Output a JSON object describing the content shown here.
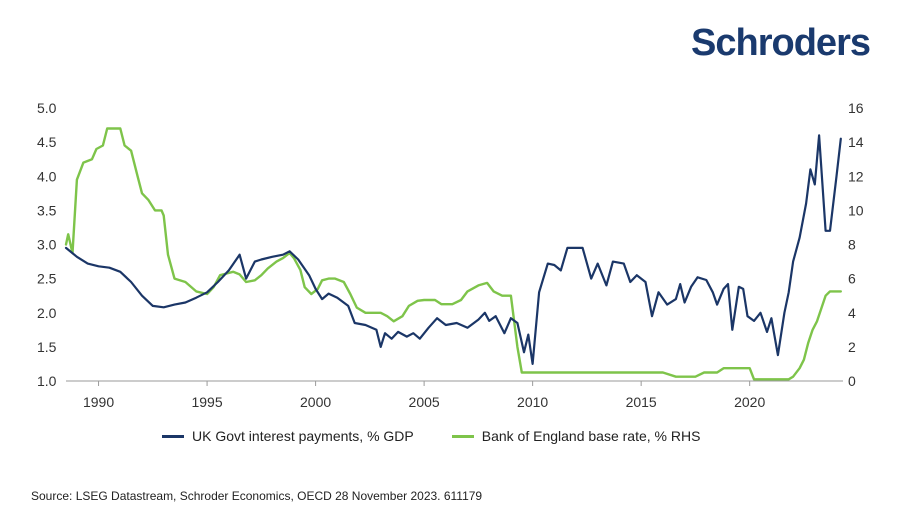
{
  "brand": "Schroders",
  "source": "Source: LSEG Datastream, Schroder Economics, OECD 28 November 2023. 611179",
  "colors": {
    "series1": "#1b3667",
    "series2": "#7ec44a",
    "brand": "#1a3a6e"
  },
  "chart_data": {
    "type": "line",
    "title": "",
    "xlabel": "",
    "ylabel_left": "",
    "ylabel_right": "",
    "xlim": [
      1988.5,
      2024.3
    ],
    "ylim_left": [
      1.0,
      5.0
    ],
    "ylim_right": [
      0,
      16
    ],
    "x_ticks": [
      "1990",
      "1995",
      "2000",
      "2005",
      "2010",
      "2015",
      "2020"
    ],
    "y_ticks_left": [
      "5.0",
      "4.5",
      "4.0",
      "3.5",
      "3.0",
      "2.5",
      "2.0",
      "1.5",
      "1.0"
    ],
    "y_ticks_right": [
      "16",
      "14",
      "12",
      "10",
      "8",
      "6",
      "4",
      "2",
      "0"
    ],
    "grid": false,
    "legend_position": "bottom",
    "series": [
      {
        "name": "UK Govt interest payments, % GDP",
        "axis": "left",
        "points": [
          [
            1988.5,
            2.95
          ],
          [
            1989.0,
            2.82
          ],
          [
            1989.5,
            2.72
          ],
          [
            1990.0,
            2.68
          ],
          [
            1990.5,
            2.66
          ],
          [
            1991.0,
            2.6
          ],
          [
            1991.5,
            2.45
          ],
          [
            1992.0,
            2.25
          ],
          [
            1992.5,
            2.1
          ],
          [
            1993.0,
            2.08
          ],
          [
            1993.5,
            2.12
          ],
          [
            1994.0,
            2.15
          ],
          [
            1994.5,
            2.22
          ],
          [
            1995.0,
            2.3
          ],
          [
            1995.5,
            2.45
          ],
          [
            1996.0,
            2.62
          ],
          [
            1996.5,
            2.85
          ],
          [
            1996.8,
            2.5
          ],
          [
            1997.2,
            2.75
          ],
          [
            1997.5,
            2.78
          ],
          [
            1998.0,
            2.82
          ],
          [
            1998.5,
            2.85
          ],
          [
            1998.8,
            2.9
          ],
          [
            1999.2,
            2.78
          ],
          [
            1999.7,
            2.55
          ],
          [
            2000.0,
            2.35
          ],
          [
            2000.3,
            2.2
          ],
          [
            2000.6,
            2.28
          ],
          [
            2001.0,
            2.22
          ],
          [
            2001.5,
            2.1
          ],
          [
            2001.8,
            1.85
          ],
          [
            2002.3,
            1.82
          ],
          [
            2002.8,
            1.75
          ],
          [
            2003.0,
            1.5
          ],
          [
            2003.2,
            1.7
          ],
          [
            2003.5,
            1.62
          ],
          [
            2003.8,
            1.72
          ],
          [
            2004.2,
            1.65
          ],
          [
            2004.5,
            1.7
          ],
          [
            2004.8,
            1.62
          ],
          [
            2005.2,
            1.78
          ],
          [
            2005.6,
            1.92
          ],
          [
            2006.0,
            1.82
          ],
          [
            2006.5,
            1.85
          ],
          [
            2007.0,
            1.78
          ],
          [
            2007.5,
            1.9
          ],
          [
            2007.8,
            2.0
          ],
          [
            2008.0,
            1.88
          ],
          [
            2008.3,
            1.95
          ],
          [
            2008.7,
            1.7
          ],
          [
            2009.0,
            1.92
          ],
          [
            2009.3,
            1.85
          ],
          [
            2009.6,
            1.42
          ],
          [
            2009.8,
            1.68
          ],
          [
            2010.0,
            1.25
          ],
          [
            2010.3,
            2.3
          ],
          [
            2010.7,
            2.72
          ],
          [
            2011.0,
            2.7
          ],
          [
            2011.3,
            2.62
          ],
          [
            2011.6,
            2.95
          ],
          [
            2012.0,
            2.95
          ],
          [
            2012.3,
            2.95
          ],
          [
            2012.7,
            2.5
          ],
          [
            2013.0,
            2.72
          ],
          [
            2013.4,
            2.4
          ],
          [
            2013.7,
            2.75
          ],
          [
            2014.2,
            2.72
          ],
          [
            2014.5,
            2.45
          ],
          [
            2014.8,
            2.55
          ],
          [
            2015.2,
            2.45
          ],
          [
            2015.5,
            1.95
          ],
          [
            2015.8,
            2.3
          ],
          [
            2016.2,
            2.12
          ],
          [
            2016.6,
            2.2
          ],
          [
            2016.8,
            2.42
          ],
          [
            2017.0,
            2.15
          ],
          [
            2017.3,
            2.38
          ],
          [
            2017.6,
            2.52
          ],
          [
            2018.0,
            2.48
          ],
          [
            2018.3,
            2.3
          ],
          [
            2018.5,
            2.12
          ],
          [
            2018.8,
            2.35
          ],
          [
            2019.0,
            2.42
          ],
          [
            2019.2,
            1.75
          ],
          [
            2019.5,
            2.38
          ],
          [
            2019.7,
            2.35
          ],
          [
            2019.9,
            1.95
          ],
          [
            2020.2,
            1.88
          ],
          [
            2020.5,
            2.0
          ],
          [
            2020.8,
            1.72
          ],
          [
            2021.0,
            1.92
          ],
          [
            2021.3,
            1.38
          ],
          [
            2021.6,
            2.0
          ],
          [
            2021.8,
            2.3
          ],
          [
            2022.0,
            2.75
          ],
          [
            2022.3,
            3.1
          ],
          [
            2022.6,
            3.6
          ],
          [
            2022.8,
            4.1
          ],
          [
            2023.0,
            3.88
          ],
          [
            2023.2,
            4.6
          ],
          [
            2023.5,
            3.2
          ],
          [
            2023.7,
            3.2
          ],
          [
            2024.0,
            4.0
          ],
          [
            2024.2,
            4.55
          ]
        ]
      },
      {
        "name": "Bank of England base rate, % RHS",
        "axis": "right",
        "points": [
          [
            1988.5,
            8.0
          ],
          [
            1988.6,
            8.6
          ],
          [
            1988.8,
            7.5
          ],
          [
            1989.0,
            11.8
          ],
          [
            1989.3,
            12.8
          ],
          [
            1989.7,
            13.0
          ],
          [
            1989.9,
            13.6
          ],
          [
            1990.2,
            13.8
          ],
          [
            1990.4,
            14.8
          ],
          [
            1990.7,
            14.8
          ],
          [
            1991.0,
            14.8
          ],
          [
            1991.2,
            13.8
          ],
          [
            1991.5,
            13.5
          ],
          [
            1991.8,
            12.0
          ],
          [
            1992.0,
            11.0
          ],
          [
            1992.3,
            10.6
          ],
          [
            1992.6,
            10.0
          ],
          [
            1992.9,
            10.0
          ],
          [
            1993.0,
            9.7
          ],
          [
            1993.2,
            7.4
          ],
          [
            1993.5,
            6.0
          ],
          [
            1994.0,
            5.8
          ],
          [
            1994.5,
            5.25
          ],
          [
            1995.0,
            5.1
          ],
          [
            1995.3,
            5.5
          ],
          [
            1995.6,
            6.2
          ],
          [
            1995.9,
            6.3
          ],
          [
            1996.2,
            6.4
          ],
          [
            1996.5,
            6.25
          ],
          [
            1996.8,
            5.8
          ],
          [
            1997.2,
            5.9
          ],
          [
            1997.5,
            6.2
          ],
          [
            1997.8,
            6.6
          ],
          [
            1998.2,
            7.0
          ],
          [
            1998.5,
            7.2
          ],
          [
            1998.8,
            7.5
          ],
          [
            1999.0,
            7.2
          ],
          [
            1999.3,
            6.5
          ],
          [
            1999.5,
            5.5
          ],
          [
            1999.8,
            5.1
          ],
          [
            2000.1,
            5.4
          ],
          [
            2000.3,
            5.9
          ],
          [
            2000.6,
            6.0
          ],
          [
            2000.9,
            6.0
          ],
          [
            2001.3,
            5.8
          ],
          [
            2001.6,
            5.1
          ],
          [
            2001.9,
            4.3
          ],
          [
            2002.3,
            4.0
          ],
          [
            2003.0,
            4.0
          ],
          [
            2003.3,
            3.8
          ],
          [
            2003.6,
            3.5
          ],
          [
            2004.0,
            3.8
          ],
          [
            2004.3,
            4.4
          ],
          [
            2004.7,
            4.7
          ],
          [
            2005.0,
            4.75
          ],
          [
            2005.5,
            4.75
          ],
          [
            2005.8,
            4.5
          ],
          [
            2006.3,
            4.5
          ],
          [
            2006.7,
            4.75
          ],
          [
            2007.0,
            5.25
          ],
          [
            2007.5,
            5.6
          ],
          [
            2007.9,
            5.75
          ],
          [
            2008.2,
            5.25
          ],
          [
            2008.6,
            5.0
          ],
          [
            2009.0,
            5.0
          ],
          [
            2009.3,
            2.0
          ],
          [
            2009.5,
            0.5
          ],
          [
            2010.0,
            0.5
          ],
          [
            2012.0,
            0.5
          ],
          [
            2014.0,
            0.5
          ],
          [
            2016.0,
            0.5
          ],
          [
            2016.6,
            0.25
          ],
          [
            2017.5,
            0.25
          ],
          [
            2017.9,
            0.5
          ],
          [
            2018.5,
            0.5
          ],
          [
            2018.8,
            0.75
          ],
          [
            2019.5,
            0.75
          ],
          [
            2020.0,
            0.75
          ],
          [
            2020.2,
            0.1
          ],
          [
            2021.0,
            0.1
          ],
          [
            2021.8,
            0.1
          ],
          [
            2022.0,
            0.25
          ],
          [
            2022.3,
            0.75
          ],
          [
            2022.5,
            1.25
          ],
          [
            2022.7,
            2.25
          ],
          [
            2022.9,
            3.0
          ],
          [
            2023.1,
            3.5
          ],
          [
            2023.3,
            4.25
          ],
          [
            2023.5,
            5.0
          ],
          [
            2023.7,
            5.25
          ],
          [
            2024.2,
            5.25
          ]
        ]
      }
    ]
  }
}
